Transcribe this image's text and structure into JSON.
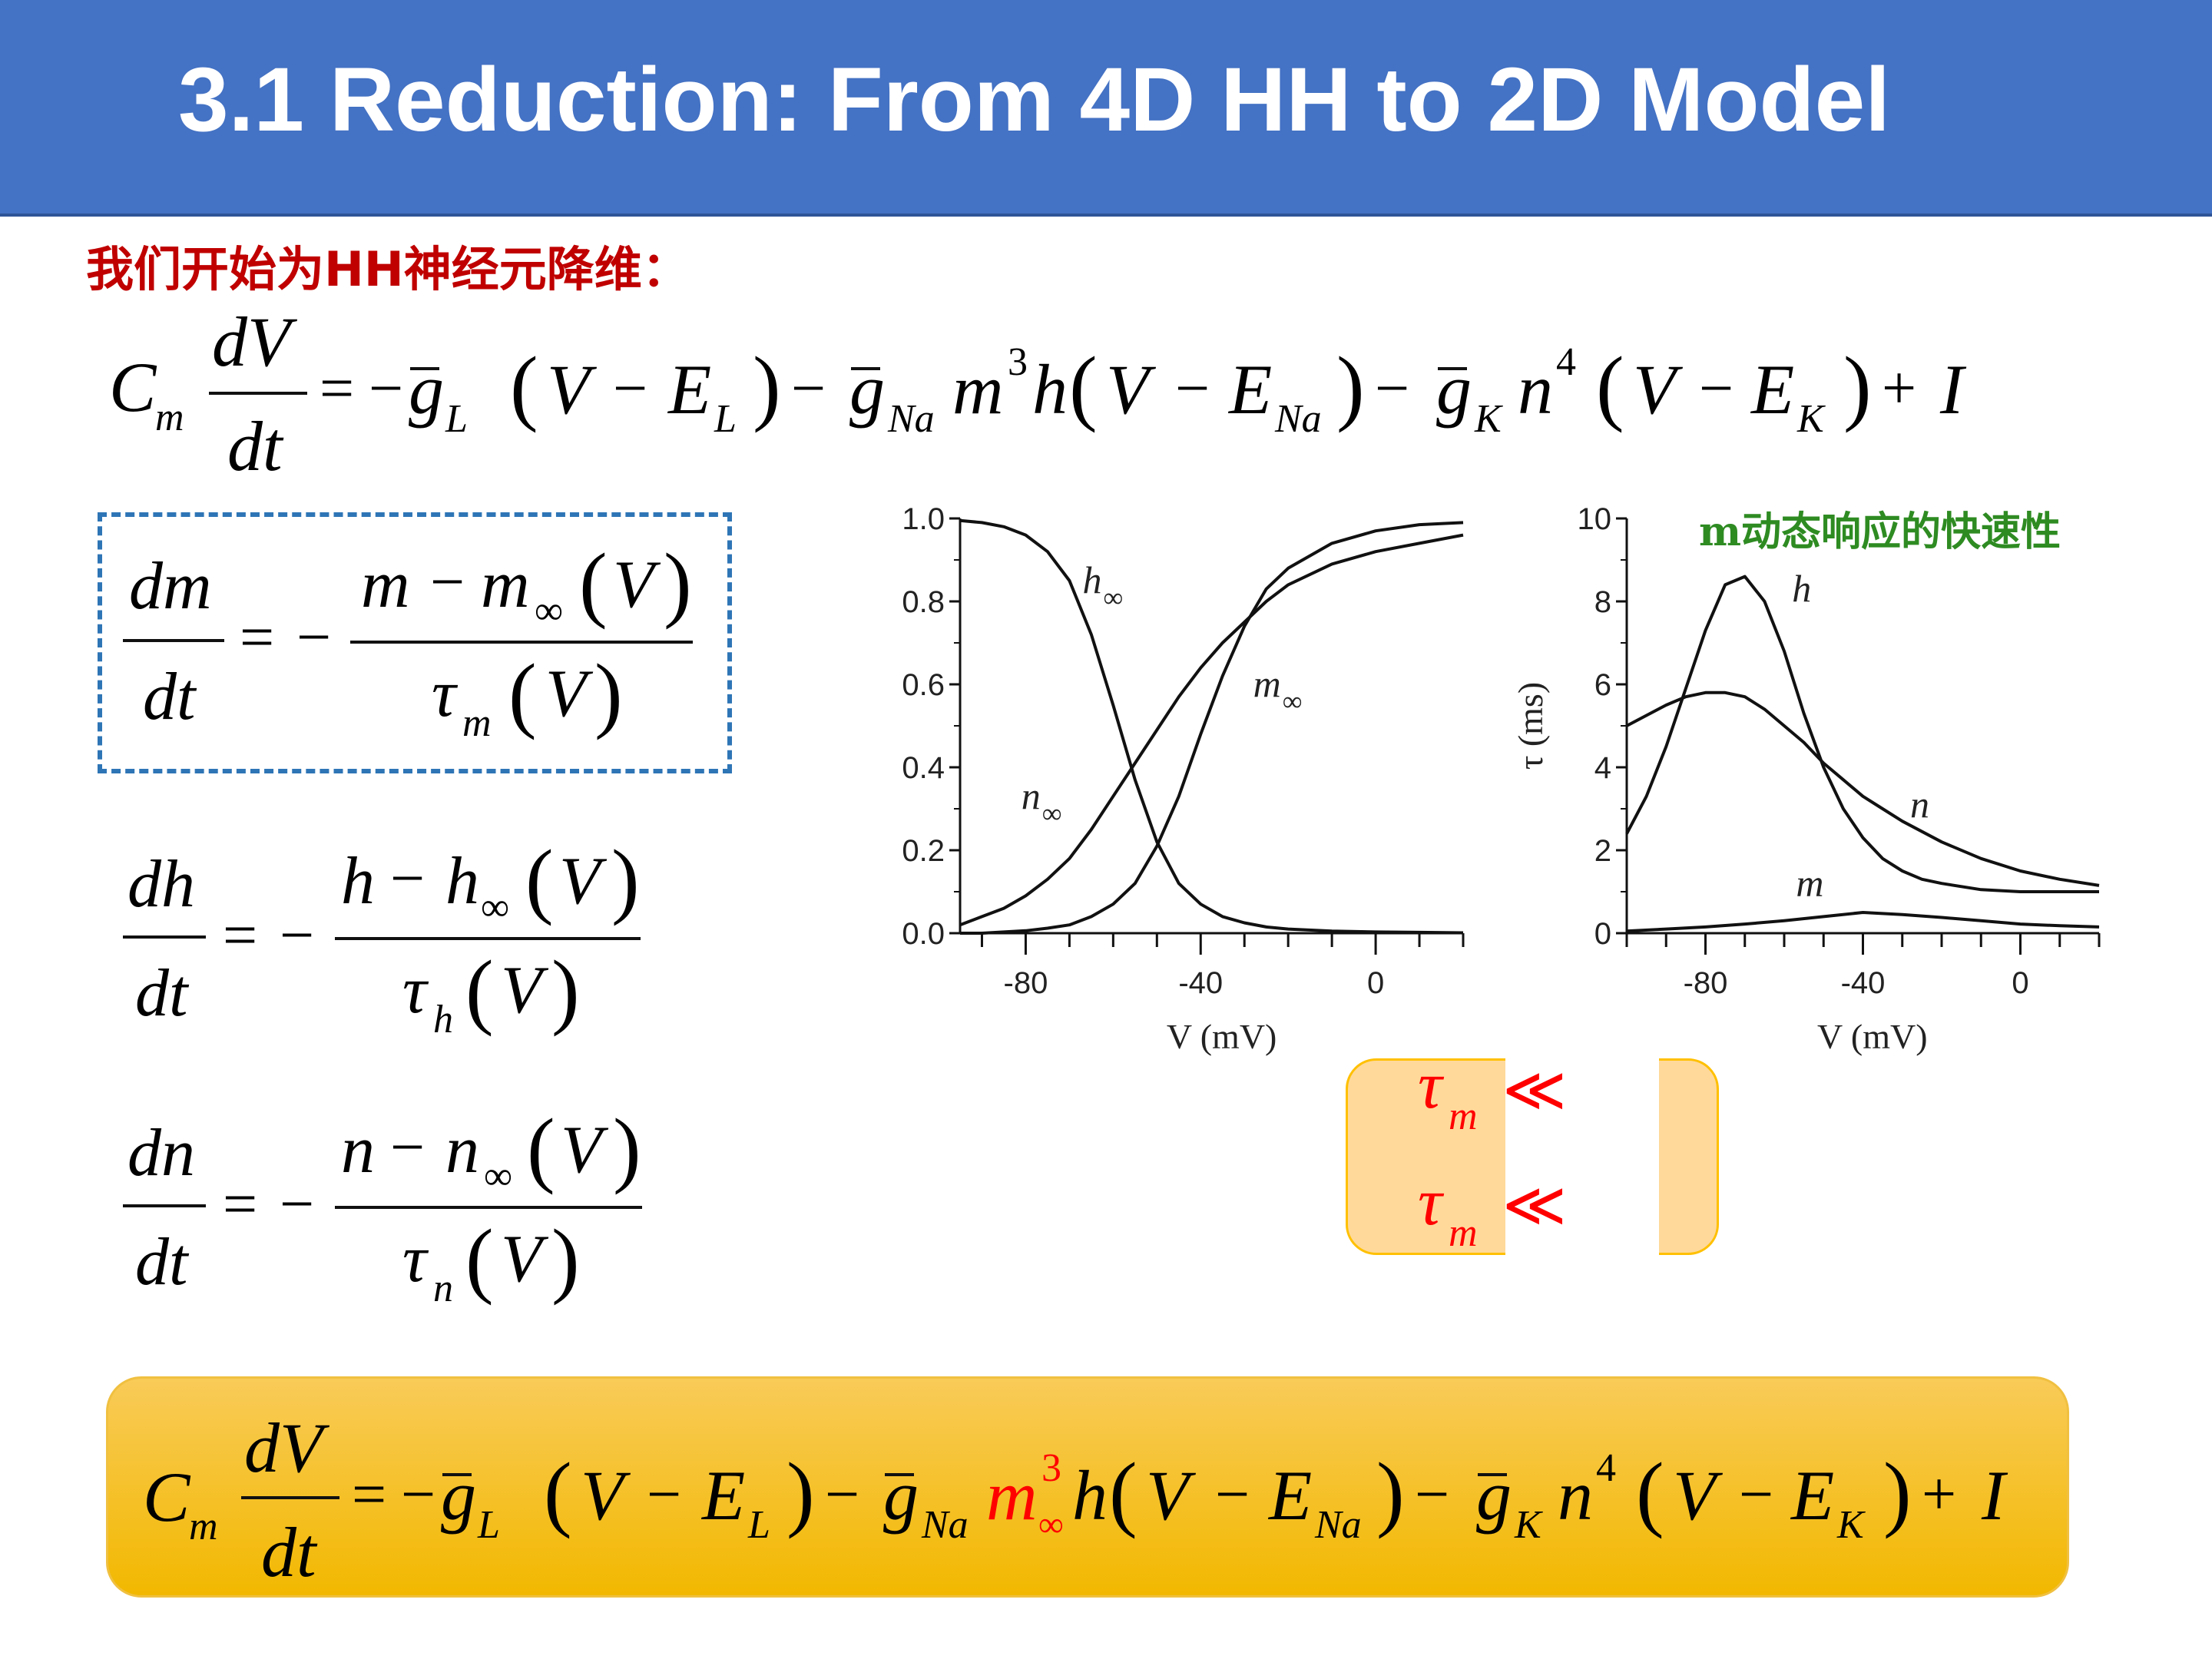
{
  "slide": {
    "title": "3.1 Reduction: From 4D HH to 2D Model",
    "subtitle": "我们开始为HH神经元降维：",
    "accent_color": "#4472c4",
    "subtitle_color": "#c00000"
  },
  "equations": {
    "main_top": "Cm dV/dt = − ḡL (V − EL) − ḡNa m³h (V − ENa) − ḡK n⁴ (V − EK) + I",
    "dm": "dm/dt = − (m − m∞(V)) / τm(V)",
    "dh": "dh/dt = − (h − h∞(V)) / τh(V)",
    "dn": "dn/dt = − (n − n∞(V)) / τn(V)",
    "main_reduced": "Cm dV/dt = − ḡL (V − EL) − ḡNa m∞³h (V − ENa) − ḡK n⁴ (V − EK) + I",
    "reduced_highlight_color": "#ff0000"
  },
  "comparison": {
    "row1": "τm ≪",
    "row2": "τm ≪",
    "symbol_color": "#ff0000"
  },
  "chart_note": "m动态响应的快速性",
  "chart_data": [
    {
      "type": "line",
      "xlabel": "V (mV)",
      "ylabel": "",
      "xlim": [
        -95,
        20
      ],
      "ylim": [
        0,
        1.0
      ],
      "xticks": [
        "-80",
        "-40",
        "0"
      ],
      "xtick_values": [
        -80,
        -40,
        0
      ],
      "yticks": [
        "0.0",
        "0.2",
        "0.4",
        "0.6",
        "0.8",
        "1.0"
      ],
      "ytick_values": [
        0,
        0.2,
        0.4,
        0.6,
        0.8,
        1.0
      ],
      "grid": false,
      "series": [
        {
          "name": "h∞",
          "x": [
            -95,
            -90,
            -85,
            -80,
            -75,
            -70,
            -65,
            -60,
            -55,
            -50,
            -45,
            -40,
            -35,
            -30,
            -25,
            -20,
            -10,
            0,
            10,
            20
          ],
          "values": [
            0.995,
            0.99,
            0.98,
            0.96,
            0.92,
            0.85,
            0.72,
            0.55,
            0.37,
            0.22,
            0.12,
            0.07,
            0.04,
            0.025,
            0.015,
            0.01,
            0.005,
            0.003,
            0.002,
            0.001
          ]
        },
        {
          "name": "n∞",
          "x": [
            -95,
            -90,
            -85,
            -80,
            -75,
            -70,
            -65,
            -60,
            -55,
            -50,
            -45,
            -40,
            -35,
            -30,
            -25,
            -20,
            -10,
            0,
            10,
            20
          ],
          "values": [
            0.02,
            0.04,
            0.06,
            0.09,
            0.13,
            0.18,
            0.25,
            0.33,
            0.41,
            0.49,
            0.57,
            0.64,
            0.7,
            0.75,
            0.8,
            0.84,
            0.89,
            0.92,
            0.94,
            0.96
          ]
        },
        {
          "name": "m∞",
          "x": [
            -95,
            -90,
            -85,
            -80,
            -75,
            -70,
            -65,
            -60,
            -55,
            -50,
            -45,
            -40,
            -35,
            -30,
            -25,
            -20,
            -10,
            0,
            10,
            20
          ],
          "values": [
            0.0,
            0.0,
            0.003,
            0.006,
            0.012,
            0.02,
            0.04,
            0.07,
            0.12,
            0.21,
            0.33,
            0.48,
            0.62,
            0.74,
            0.83,
            0.88,
            0.94,
            0.97,
            0.985,
            0.99
          ]
        }
      ]
    },
    {
      "type": "line",
      "xlabel": "V (mV)",
      "ylabel": "τ (ms)",
      "xlim": [
        -100,
        20
      ],
      "ylim": [
        0,
        10
      ],
      "xticks": [
        "-80",
        "-40",
        "0"
      ],
      "xtick_values": [
        -80,
        -40,
        0
      ],
      "yticks": [
        "0",
        "2",
        "4",
        "6",
        "8",
        "10"
      ],
      "ytick_values": [
        0,
        2,
        4,
        6,
        8,
        10
      ],
      "grid": false,
      "series": [
        {
          "name": "h",
          "x": [
            -100,
            -95,
            -90,
            -85,
            -80,
            -75,
            -70,
            -65,
            -60,
            -55,
            -50,
            -45,
            -40,
            -35,
            -30,
            -25,
            -20,
            -10,
            0,
            10,
            20
          ],
          "values": [
            2.4,
            3.3,
            4.5,
            5.9,
            7.3,
            8.4,
            8.6,
            8.0,
            6.8,
            5.3,
            4.0,
            3.0,
            2.3,
            1.8,
            1.5,
            1.3,
            1.2,
            1.05,
            1.0,
            1.0,
            1.0
          ]
        },
        {
          "name": "n",
          "x": [
            -100,
            -95,
            -90,
            -85,
            -80,
            -75,
            -70,
            -65,
            -60,
            -55,
            -50,
            -45,
            -40,
            -35,
            -30,
            -25,
            -20,
            -10,
            0,
            10,
            20
          ],
          "values": [
            5.0,
            5.25,
            5.5,
            5.7,
            5.8,
            5.8,
            5.7,
            5.4,
            5.0,
            4.6,
            4.1,
            3.7,
            3.3,
            3.0,
            2.7,
            2.45,
            2.2,
            1.8,
            1.5,
            1.3,
            1.15
          ]
        },
        {
          "name": "m",
          "x": [
            -100,
            -90,
            -80,
            -70,
            -60,
            -50,
            -40,
            -30,
            -20,
            -10,
            0,
            10,
            20
          ],
          "values": [
            0.05,
            0.1,
            0.15,
            0.22,
            0.3,
            0.4,
            0.5,
            0.45,
            0.38,
            0.3,
            0.22,
            0.18,
            0.15
          ]
        }
      ]
    }
  ]
}
